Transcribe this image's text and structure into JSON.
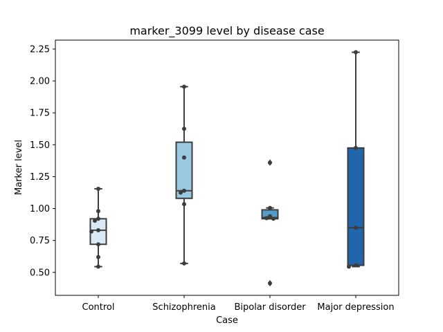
{
  "chart_data": {
    "type": "box",
    "title": "marker_3099 level by disease case",
    "xlabel": "Case",
    "ylabel": "Marker level",
    "ylim": [
      0.32,
      2.32
    ],
    "yticks": [
      "0.50",
      "0.75",
      "1.00",
      "1.25",
      "1.50",
      "1.75",
      "2.00",
      "2.25"
    ],
    "grid": false,
    "categories": [
      "Control",
      "Schizophrenia",
      "Bipolar disorder",
      "Major depression"
    ],
    "colors": [
      "#dbe9f6",
      "#9ac8e0",
      "#529dcc",
      "#2165ab"
    ],
    "edge_color": "#3d3d3d",
    "point_color": "#3d3d3d",
    "boxes": [
      {
        "q1": 0.72,
        "median": 0.83,
        "q3": 0.92,
        "whislo": 0.545,
        "whishi": 1.155,
        "fliers": []
      },
      {
        "q1": 1.08,
        "median": 1.14,
        "q3": 1.52,
        "whislo": 0.57,
        "whishi": 1.955,
        "fliers": []
      },
      {
        "q1": 0.92,
        "median": 0.93,
        "q3": 0.99,
        "whislo": 0.92,
        "whishi": 1.005,
        "fliers": [
          1.36,
          0.415
        ]
      },
      {
        "q1": 0.555,
        "median": 0.85,
        "q3": 1.475,
        "whislo": 0.545,
        "whishi": 2.225,
        "fliers": []
      }
    ],
    "points": [
      [
        1.155,
        0.98,
        0.92,
        0.905,
        0.83,
        0.82,
        0.72,
        0.62,
        0.545
      ],
      [
        1.955,
        1.625,
        1.4,
        1.14,
        1.125,
        1.035,
        0.57
      ],
      [
        1.36,
        1.005,
        0.94,
        0.925,
        0.92,
        0.415
      ],
      [
        2.225,
        1.475,
        0.85,
        0.555,
        0.545
      ]
    ]
  }
}
